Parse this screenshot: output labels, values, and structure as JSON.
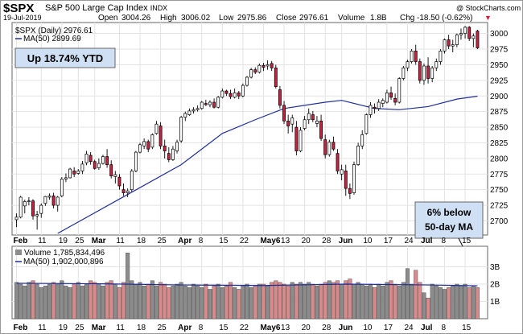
{
  "header": {
    "symbol": "$SPX",
    "name": "S&P 500 Large Cap Index",
    "exchange": "INDX",
    "date": "19-Jul-2019",
    "open_label": "Open",
    "open": "3004.26",
    "high_label": "High",
    "high": "3006.02",
    "low_label": "Low",
    "low": "2975.86",
    "close_label": "Close",
    "close": "2976.61",
    "volume_label": "Volume",
    "volume": "1.8B",
    "chg_label": "Chg",
    "chg": "-18.50 (-0.62%)",
    "chg_arrow": "▼",
    "watermark": "@ StockCharts.com"
  },
  "price_legend": {
    "series1": "$SPX (Daily) 2976.61",
    "series2": "MA(50) 2899.69"
  },
  "volume_legend": {
    "series1": "Volume 1,785,834,496",
    "series2": "MA(50) 1,902,000,896"
  },
  "annotations": {
    "ytd": "Up 18.74% YTD",
    "ma_note_line1": "6% below",
    "ma_note_line2": "50-day MA"
  },
  "colors": {
    "up": "#ffffff",
    "down": "#cc1f3f",
    "wick": "#000000",
    "ma": "#1f2d9b",
    "volume_up": "#8c8c8c",
    "volume_down": "#d98a8a",
    "volume_ma": "#1f2d9b",
    "label_box": "#cfe0f5",
    "chg_color": "#cc1f3f"
  },
  "chart_data": [
    {
      "type": "candlestick",
      "ylim": [
        2680,
        3015
      ],
      "y_ticks": [
        2700,
        2725,
        2750,
        2775,
        2800,
        2825,
        2850,
        2875,
        2900,
        2925,
        2950,
        2975,
        3000
      ],
      "x_tick_labels": [
        "Feb",
        "11",
        "19",
        "25",
        "Mar",
        "11",
        "18",
        "25",
        "Apr",
        "8",
        "15",
        "22",
        "May",
        "13",
        "20",
        "28",
        "Jun",
        "10",
        "17",
        "24",
        "Jul",
        "8",
        "15"
      ],
      "x_tick_bold": [
        true,
        false,
        false,
        false,
        true,
        false,
        false,
        false,
        true,
        false,
        false,
        false,
        true,
        false,
        false,
        false,
        true,
        false,
        false,
        false,
        true,
        false,
        false
      ],
      "x_tick_index": [
        0,
        6,
        11,
        15,
        19,
        25,
        30,
        35,
        40,
        45,
        50,
        55,
        60,
        65,
        70,
        75,
        79,
        85,
        90,
        95,
        99,
        104,
        109
      ],
      "x_tick_suffix": [
        "",
        "",
        "",
        "",
        "",
        "",
        "",
        "",
        "",
        "",
        "",
        "",
        "6",
        "",
        "",
        "",
        "",
        "",
        "",
        "",
        "",
        "",
        ""
      ],
      "grid": true,
      "candles": [
        [
          2702,
          2712,
          2690,
          2706
        ],
        [
          2706,
          2740,
          2704,
          2738
        ],
        [
          2724,
          2734,
          2712,
          2731
        ],
        [
          2731,
          2738,
          2725,
          2732
        ],
        [
          2732,
          2735,
          2702,
          2708
        ],
        [
          2708,
          2716,
          2686,
          2710
        ],
        [
          2712,
          2728,
          2705,
          2725
        ],
        [
          2728,
          2740,
          2724,
          2739
        ],
        [
          2738,
          2744,
          2734,
          2740
        ],
        [
          2740,
          2745,
          2720,
          2725
        ],
        [
          2725,
          2740,
          2715,
          2738
        ],
        [
          2740,
          2770,
          2738,
          2767
        ],
        [
          2767,
          2776,
          2762,
          2769
        ],
        [
          2769,
          2785,
          2768,
          2783
        ],
        [
          2780,
          2786,
          2770,
          2775
        ],
        [
          2776,
          2783,
          2774,
          2780
        ],
        [
          2780,
          2796,
          2775,
          2791
        ],
        [
          2793,
          2812,
          2789,
          2807
        ],
        [
          2805,
          2810,
          2790,
          2795
        ],
        [
          2795,
          2798,
          2782,
          2784
        ],
        [
          2785,
          2800,
          2782,
          2792
        ],
        [
          2792,
          2806,
          2790,
          2803
        ],
        [
          2803,
          2815,
          2785,
          2790
        ],
        [
          2790,
          2797,
          2768,
          2772
        ],
        [
          2771,
          2780,
          2760,
          2774
        ],
        [
          2770,
          2775,
          2750,
          2756
        ],
        [
          2750,
          2760,
          2740,
          2745
        ],
        [
          2745,
          2752,
          2738,
          2748
        ],
        [
          2750,
          2783,
          2747,
          2780
        ],
        [
          2780,
          2812,
          2778,
          2810
        ],
        [
          2810,
          2825,
          2808,
          2822
        ],
        [
          2820,
          2832,
          2815,
          2827
        ],
        [
          2827,
          2830,
          2810,
          2815
        ],
        [
          2818,
          2840,
          2815,
          2838
        ],
        [
          2840,
          2860,
          2838,
          2855
        ],
        [
          2852,
          2858,
          2815,
          2820
        ],
        [
          2820,
          2830,
          2800,
          2812
        ],
        [
          2808,
          2818,
          2794,
          2798
        ],
        [
          2798,
          2820,
          2796,
          2815
        ],
        [
          2812,
          2830,
          2808,
          2826
        ],
        [
          2828,
          2868,
          2825,
          2866
        ],
        [
          2866,
          2875,
          2860,
          2872
        ],
        [
          2870,
          2880,
          2868,
          2876
        ],
        [
          2876,
          2882,
          2872,
          2878
        ],
        [
          2878,
          2885,
          2875,
          2880
        ],
        [
          2880,
          2892,
          2878,
          2890
        ],
        [
          2888,
          2894,
          2884,
          2886
        ],
        [
          2886,
          2893,
          2882,
          2890
        ],
        [
          2890,
          2896,
          2880,
          2882
        ],
        [
          2882,
          2900,
          2880,
          2898
        ],
        [
          2898,
          2912,
          2896,
          2908
        ],
        [
          2908,
          2910,
          2900,
          2904
        ],
        [
          2904,
          2910,
          2895,
          2899
        ],
        [
          2898,
          2912,
          2896,
          2905
        ],
        [
          2905,
          2908,
          2895,
          2900
        ],
        [
          2900,
          2920,
          2898,
          2917
        ],
        [
          2917,
          2932,
          2915,
          2930
        ],
        [
          2930,
          2945,
          2928,
          2942
        ],
        [
          2942,
          2946,
          2935,
          2938
        ],
        [
          2938,
          2952,
          2936,
          2949
        ],
        [
          2949,
          2953,
          2940,
          2946
        ],
        [
          2948,
          2957,
          2942,
          2950
        ],
        [
          2952,
          2956,
          2940,
          2945
        ],
        [
          2945,
          2950,
          2912,
          2915
        ],
        [
          2910,
          2916,
          2880,
          2885
        ],
        [
          2885,
          2892,
          2855,
          2860
        ],
        [
          2860,
          2870,
          2840,
          2852
        ],
        [
          2855,
          2870,
          2842,
          2865
        ],
        [
          2850,
          2860,
          2805,
          2812
        ],
        [
          2812,
          2850,
          2810,
          2845
        ],
        [
          2848,
          2868,
          2845,
          2862
        ],
        [
          2862,
          2880,
          2855,
          2872
        ],
        [
          2870,
          2876,
          2858,
          2862
        ],
        [
          2856,
          2868,
          2850,
          2860
        ],
        [
          2860,
          2870,
          2828,
          2832
        ],
        [
          2830,
          2838,
          2800,
          2806
        ],
        [
          2806,
          2830,
          2803,
          2826
        ],
        [
          2826,
          2835,
          2812,
          2815
        ],
        [
          2808,
          2815,
          2775,
          2780
        ],
        [
          2775,
          2790,
          2765,
          2782
        ],
        [
          2780,
          2790,
          2740,
          2752
        ],
        [
          2752,
          2760,
          2735,
          2744
        ],
        [
          2745,
          2795,
          2742,
          2790
        ],
        [
          2790,
          2825,
          2788,
          2820
        ],
        [
          2820,
          2845,
          2815,
          2838
        ],
        [
          2840,
          2872,
          2838,
          2870
        ],
        [
          2870,
          2890,
          2865,
          2885
        ],
        [
          2882,
          2888,
          2872,
          2880
        ],
        [
          2880,
          2895,
          2876,
          2890
        ],
        [
          2888,
          2896,
          2882,
          2893
        ],
        [
          2890,
          2910,
          2888,
          2905
        ],
        [
          2905,
          2915,
          2894,
          2898
        ],
        [
          2896,
          2904,
          2885,
          2890
        ],
        [
          2890,
          2930,
          2888,
          2928
        ],
        [
          2928,
          2948,
          2925,
          2945
        ],
        [
          2945,
          2958,
          2940,
          2955
        ],
        [
          2955,
          2975,
          2952,
          2972
        ],
        [
          2972,
          2982,
          2950,
          2955
        ],
        [
          2955,
          2960,
          2920,
          2925
        ],
        [
          2925,
          2952,
          2918,
          2948
        ],
        [
          2948,
          2962,
          2920,
          2928
        ],
        [
          2928,
          2948,
          2922,
          2945
        ],
        [
          2945,
          2960,
          2940,
          2955
        ],
        [
          2955,
          2975,
          2950,
          2972
        ],
        [
          2972,
          2992,
          2968,
          2990
        ],
        [
          2990,
          2998,
          2975,
          2980
        ],
        [
          2980,
          2990,
          2970,
          2982
        ],
        [
          2982,
          3000,
          2978,
          2998
        ],
        [
          2998,
          3008,
          2990,
          3000
        ],
        [
          3000,
          3012,
          2992,
          3010
        ],
        [
          3010,
          3012,
          2988,
          2992
        ],
        [
          2992,
          3000,
          2978,
          2996
        ],
        [
          3004,
          3006,
          2975,
          2977
        ]
      ],
      "ma50": [
        [
          10,
          2680
        ],
        [
          25,
          2735
        ],
        [
          40,
          2790
        ],
        [
          50,
          2840
        ],
        [
          58,
          2862
        ],
        [
          65,
          2880
        ],
        [
          75,
          2890
        ],
        [
          79,
          2893
        ],
        [
          87,
          2880
        ],
        [
          93,
          2878
        ],
        [
          100,
          2883
        ],
        [
          107,
          2895
        ],
        [
          112,
          2899.69
        ]
      ]
    },
    {
      "type": "bar",
      "ylim": [
        0,
        4.0
      ],
      "y_ticks": [
        1,
        2,
        3
      ],
      "y_tick_labels": [
        "1B",
        "2B",
        "3B"
      ],
      "volumes": [
        2.1,
        2.0,
        1.9,
        2.1,
        2.2,
        2.0,
        1.8,
        1.9,
        2.0,
        2.1,
        2.0,
        2.2,
        1.9,
        1.8,
        2.0,
        2.1,
        1.9,
        2.0,
        2.2,
        2.1,
        2.0,
        1.9,
        2.1,
        2.2,
        2.0,
        1.8,
        2.1,
        3.8,
        2.2,
        2.0,
        2.1,
        1.9,
        2.0,
        2.2,
        1.9,
        2.1,
        2.0,
        1.8,
        1.9,
        2.0,
        2.1,
        1.9,
        1.8,
        2.0,
        1.9,
        1.8,
        2.0,
        1.7,
        1.9,
        2.0,
        1.8,
        1.9,
        2.1,
        1.8,
        1.7,
        1.9,
        2.0,
        1.8,
        1.9,
        2.0,
        2.0,
        1.9,
        2.1,
        2.2,
        2.1,
        2.0,
        1.9,
        2.1,
        2.0,
        2.1,
        2.0,
        2.1,
        2.0,
        1.9,
        2.0,
        2.1,
        2.2,
        2.1,
        2.2,
        2.0,
        2.2,
        2.3,
        2.0,
        2.1,
        2.0,
        1.9,
        2.0,
        1.8,
        2.0,
        1.9,
        2.1,
        2.2,
        2.0,
        1.9,
        2.1,
        2.9,
        2.0,
        2.8,
        2.1,
        1.5,
        1.2,
        2.0,
        1.9,
        1.8,
        1.7,
        1.8,
        1.9,
        2.0,
        1.9,
        2.0,
        1.8,
        1.9,
        1.8
      ],
      "volume_ma": [
        [
          0,
          2.05
        ],
        [
          20,
          2.02
        ],
        [
          40,
          1.95
        ],
        [
          60,
          1.92
        ],
        [
          80,
          2.0
        ],
        [
          100,
          1.95
        ],
        [
          112,
          1.9
        ]
      ]
    }
  ]
}
